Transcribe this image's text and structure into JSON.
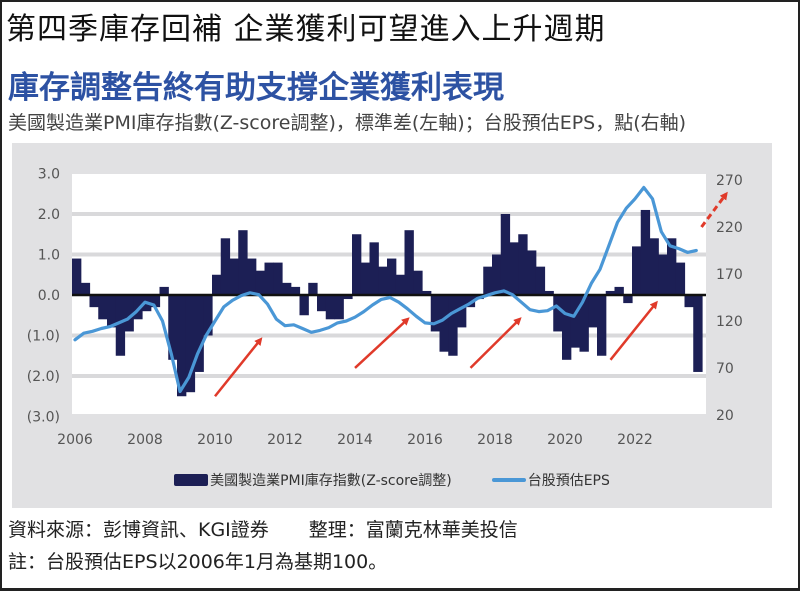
{
  "header": {
    "title": "第四季庫存回補  企業獲利可望進入上升週期",
    "subtitle": "庫存調整告終有助支撐企業獲利表現",
    "description": "美國製造業PMI庫存指數(Z-score調整)，標準差(左軸)；台股預估EPS，點(右軸)"
  },
  "legend": {
    "bar_label": "美國製造業PMI庫存指數(Z-score調整)",
    "line_label": "台股預估EPS"
  },
  "footer": {
    "source": "資料來源：彭博資訊、KGI證券",
    "compiled_by": "整理：富蘭克林華美投信",
    "note": "註：台股預估EPS以2006年1月為基期100。"
  },
  "colors": {
    "bar": "#1c1f55",
    "line": "#4a97d6",
    "arrow": "#e03a2a",
    "panel": "#e1e1e3",
    "subtitle": "#2d52a3"
  },
  "chart_data": {
    "type": "bar+line",
    "title": "庫存調整告終有助支撐企業獲利表現",
    "subtitle": "美國製造業PMI庫存指數(Z-score調整)，標準差(左軸)；台股預估EPS，點(右軸)",
    "xlabel": "",
    "ylabel_left": "標準差",
    "ylabel_right": "點",
    "x_ticks": [
      "2006",
      "2008",
      "2010",
      "2012",
      "2014",
      "2016",
      "2018",
      "2020",
      "2022"
    ],
    "y_left_ticks": [
      "3.0",
      "2.0",
      "1.0",
      "0.0",
      "(1.0)",
      "(2.0)",
      "(3.0)"
    ],
    "y_right_ticks": [
      "270",
      "220",
      "170",
      "120",
      "70",
      "20"
    ],
    "ylim_left": [
      -3.0,
      3.0
    ],
    "ylim_right": [
      20,
      270
    ],
    "grid": "horizontal",
    "legend_position": "bottom",
    "x": [
      2006.0,
      2006.25,
      2006.5,
      2006.75,
      2007.0,
      2007.25,
      2007.5,
      2007.75,
      2008.0,
      2008.25,
      2008.5,
      2008.75,
      2009.0,
      2009.25,
      2009.5,
      2009.75,
      2010.0,
      2010.25,
      2010.5,
      2010.75,
      2011.0,
      2011.25,
      2011.5,
      2011.75,
      2012.0,
      2012.25,
      2012.5,
      2012.75,
      2013.0,
      2013.25,
      2013.5,
      2013.75,
      2014.0,
      2014.25,
      2014.5,
      2014.75,
      2015.0,
      2015.25,
      2015.5,
      2015.75,
      2016.0,
      2016.25,
      2016.5,
      2016.75,
      2017.0,
      2017.25,
      2017.5,
      2017.75,
      2018.0,
      2018.25,
      2018.5,
      2018.75,
      2019.0,
      2019.25,
      2019.5,
      2019.75,
      2020.0,
      2020.25,
      2020.5,
      2020.75,
      2021.0,
      2021.25,
      2021.5,
      2021.75,
      2022.0,
      2022.25,
      2022.5,
      2022.75,
      2023.0,
      2023.25,
      2023.5,
      2023.75
    ],
    "series": [
      {
        "name": "美國製造業PMI庫存指數(Z-score調整)",
        "type": "bar",
        "axis": "left",
        "values": [
          0.9,
          0.3,
          -0.3,
          -0.6,
          -0.8,
          -1.5,
          -0.9,
          -0.6,
          -0.4,
          -0.3,
          0.2,
          -1.6,
          -2.5,
          -2.4,
          -1.9,
          -1.0,
          0.5,
          1.4,
          0.9,
          1.6,
          0.9,
          0.6,
          0.8,
          0.8,
          0.3,
          0.2,
          -0.5,
          0.3,
          -0.4,
          -0.6,
          -0.6,
          -0.1,
          1.5,
          0.8,
          1.3,
          0.7,
          0.9,
          0.5,
          1.6,
          0.6,
          0.1,
          -0.9,
          -1.4,
          -1.5,
          -0.8,
          -0.3,
          -0.1,
          0.7,
          1.0,
          2.0,
          1.3,
          1.5,
          1.1,
          0.7,
          0.1,
          -0.9,
          -1.6,
          -1.3,
          -1.4,
          -0.8,
          -1.5,
          0.1,
          0.2,
          -0.2,
          1.2,
          2.1,
          1.4,
          1.0,
          1.4,
          0.8,
          -0.3,
          -1.9
        ]
      },
      {
        "name": "台股預估EPS",
        "type": "line",
        "axis": "right",
        "values": [
          100,
          107,
          109,
          112,
          114,
          118,
          122,
          130,
          140,
          137,
          120,
          85,
          45,
          60,
          85,
          105,
          120,
          135,
          142,
          147,
          150,
          148,
          138,
          122,
          115,
          116,
          112,
          108,
          110,
          113,
          118,
          120,
          124,
          130,
          137,
          143,
          145,
          140,
          133,
          125,
          118,
          117,
          121,
          128,
          133,
          138,
          144,
          147,
          150,
          152,
          148,
          140,
          132,
          130,
          131,
          136,
          128,
          125,
          140,
          160,
          175,
          200,
          225,
          240,
          250,
          262,
          250,
          215,
          200,
          197,
          193,
          195
        ]
      }
    ],
    "annotations": [
      {
        "type": "arrow",
        "color": "red",
        "from": [
          2010.0,
          -2.5
        ],
        "to": [
          2011.3,
          -1.1
        ]
      },
      {
        "type": "arrow",
        "color": "red",
        "from": [
          2014.0,
          -1.8
        ],
        "to": [
          2015.5,
          -0.6
        ]
      },
      {
        "type": "arrow",
        "color": "red",
        "from": [
          2017.3,
          -1.8
        ],
        "to": [
          2018.7,
          -0.6
        ]
      },
      {
        "type": "arrow",
        "color": "red",
        "from": [
          2021.3,
          -1.6
        ],
        "to": [
          2022.6,
          -0.2
        ]
      },
      {
        "type": "arrow-dashed",
        "color": "red",
        "from": [
          2023.9,
          220
        ],
        "to": [
          2024.6,
          255
        ],
        "axis": "right"
      }
    ]
  }
}
